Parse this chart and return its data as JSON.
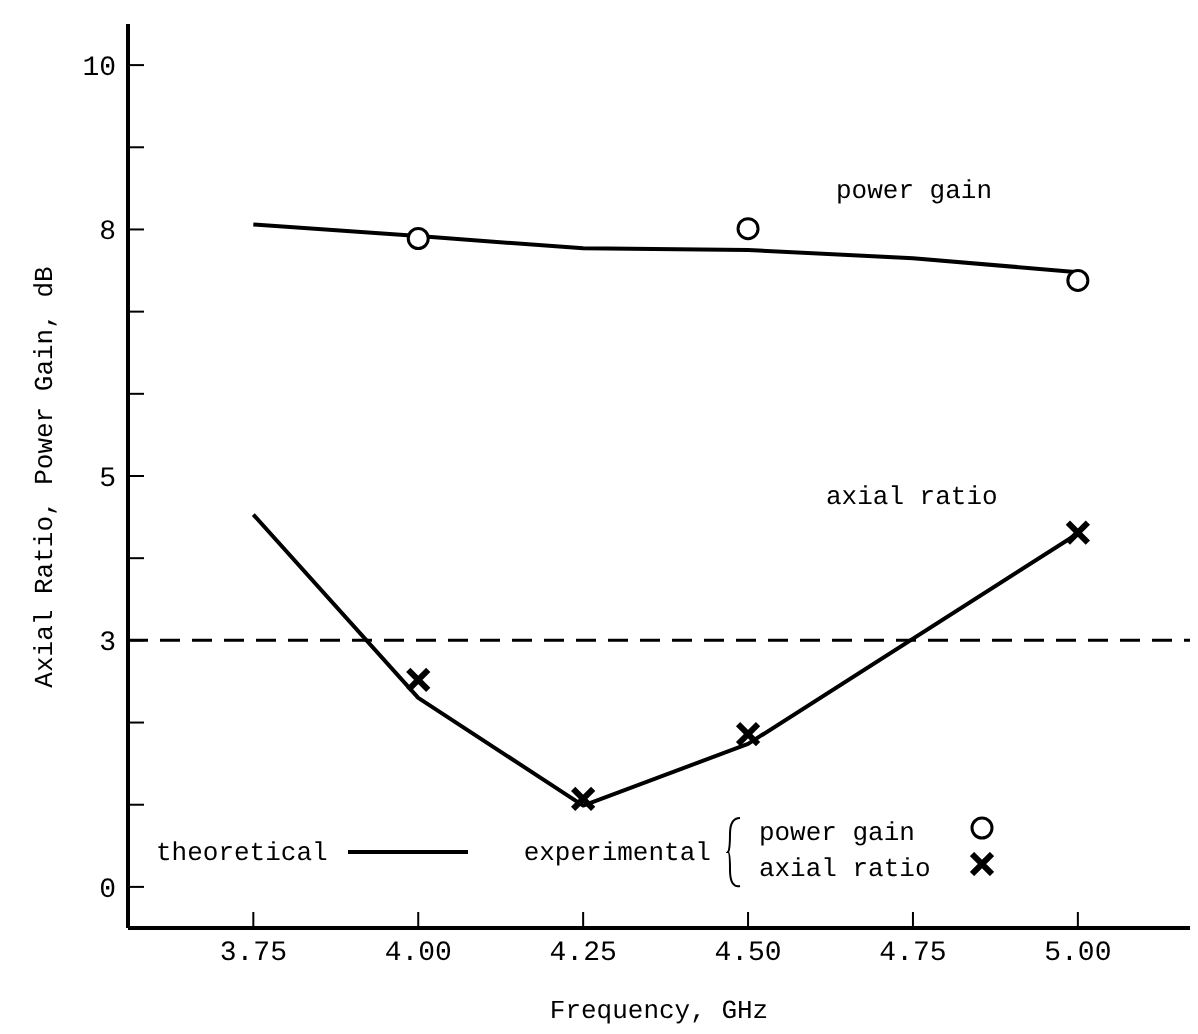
{
  "chart_data": {
    "type": "line",
    "xlabel": "Frequency, GHz",
    "ylabel": "Axial Ratio, Power Gain, dB",
    "xlim": [
      3.56,
      5.17
    ],
    "ylim": [
      -0.5,
      10.5
    ],
    "xticks": [
      3.75,
      {
        "value": 4,
        "label": "4.00"
      },
      4.25,
      {
        "value": 4.5,
        "label": "4.50"
      },
      4.75,
      {
        "value": 5,
        "label": "5.00"
      }
    ],
    "yticks": [
      0,
      {
        "value": 1,
        "label": null
      },
      {
        "value": 2,
        "label": null
      },
      3,
      {
        "value": 4,
        "label": null
      },
      5,
      {
        "value": 6,
        "label": null
      },
      {
        "value": 7,
        "label": null
      },
      8,
      {
        "value": 9,
        "label": null
      },
      10
    ],
    "x": [
      3.75,
      4.0,
      4.25,
      4.5,
      4.75,
      5.0
    ],
    "series": [
      {
        "name": "theoretical",
        "color": "#000000",
        "marker": "none",
        "line_style": "solid",
        "values": [
          8.06,
          7.92,
          7.77,
          7.75,
          7.65,
          7.48
        ]
      },
      {
        "color": "#000000",
        "marker": "none",
        "line_style": "solid",
        "x": [
          3.75,
          4.0,
          4.25,
          4.5,
          5.0
        ],
        "values": [
          4.53,
          2.3,
          0.99,
          1.74,
          4.3
        ]
      },
      {
        "name": "power gain",
        "type": "scatter",
        "color": "#000000",
        "marker": "circle",
        "x": [
          4.0,
          4.5,
          5.0
        ],
        "values": [
          7.89,
          8.01,
          7.38
        ]
      },
      {
        "name": "axial ratio",
        "type": "scatter",
        "color": "#000000",
        "marker": "cross",
        "x": [
          4.0,
          4.25,
          4.5,
          5.0
        ],
        "values": [
          2.52,
          1.07,
          1.86,
          4.31
        ]
      }
    ],
    "legend_title": "experimental",
    "legend": "bottom left",
    "ref_lines": [
      {
        "axis": "y",
        "value": 3,
        "color": "#000000",
        "line_style": "dashed"
      }
    ],
    "annotations": [
      "power gain",
      "axial ratio"
    ],
    "grid": false
  }
}
